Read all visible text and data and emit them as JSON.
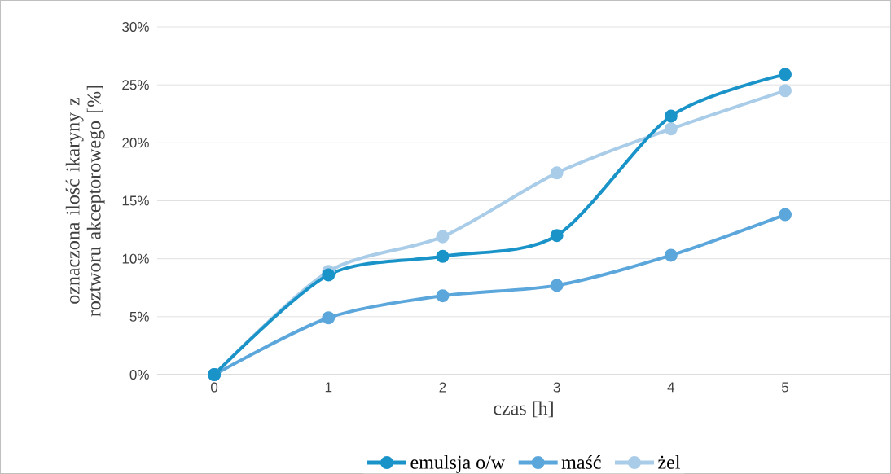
{
  "chart_data": {
    "type": "line",
    "xlabel": "czas [h]",
    "ylabel": "oznaczona ilość ikaryny z roztworu akceptorowego [%]",
    "categories": [
      "0",
      "1",
      "2",
      "3",
      "4",
      "5"
    ],
    "series": [
      {
        "name": "emulsja o/w",
        "color": "#1a94c8",
        "values": [
          0,
          8.6,
          10.2,
          12.0,
          22.3,
          25.9
        ]
      },
      {
        "name": "maść",
        "color": "#5ba6db",
        "values": [
          0,
          4.9,
          6.8,
          7.7,
          10.3,
          13.8
        ]
      },
      {
        "name": "żel",
        "color": "#a9cce8",
        "values": [
          0,
          8.9,
          11.9,
          17.4,
          21.2,
          24.5
        ]
      }
    ],
    "ylim": [
      0,
      30
    ],
    "yticks": [
      {
        "value": 0,
        "label": "0%"
      },
      {
        "value": 5,
        "label": "5%"
      },
      {
        "value": 10,
        "label": "10%"
      },
      {
        "value": 15,
        "label": "15%"
      },
      {
        "value": 20,
        "label": "20%"
      },
      {
        "value": 25,
        "label": "25%"
      },
      {
        "value": 30,
        "label": "30%"
      }
    ],
    "grid": "y",
    "legend": "bottom",
    "marker": "circle"
  }
}
